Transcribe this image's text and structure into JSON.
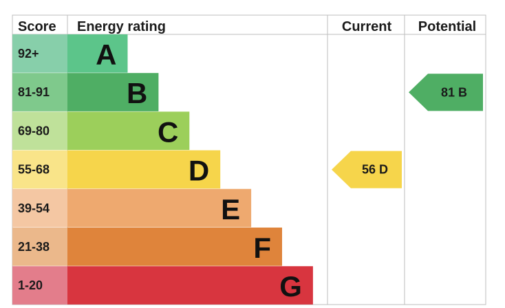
{
  "headers": {
    "score": "Score",
    "rating": "Energy rating",
    "current": "Current",
    "potential": "Potential"
  },
  "chart_data": {
    "type": "bar",
    "title": "",
    "xlabel": "",
    "ylabel": "",
    "categories": [
      "A",
      "B",
      "C",
      "D",
      "E",
      "F",
      "G"
    ],
    "score_ranges": [
      "92+",
      "81-91",
      "69-80",
      "55-68",
      "39-54",
      "21-38",
      "1-20"
    ],
    "bar_lengths": [
      1,
      2,
      3,
      4,
      5,
      6,
      7
    ],
    "band_colors": [
      "#5cc58a",
      "#4fae64",
      "#9ccf5b",
      "#f6d54b",
      "#eea96f",
      "#df843b",
      "#d8353f"
    ],
    "score_colors": [
      "#87cfaa",
      "#7fc98c",
      "#bfe19a",
      "#f9e489",
      "#f4c7a3",
      "#ebb88b",
      "#e37d8b"
    ],
    "current": {
      "value": 56,
      "band": "D",
      "label": "56  D",
      "color": "#f6d54b"
    },
    "potential": {
      "value": 81,
      "band": "B",
      "label": "81  B",
      "color": "#4fae64"
    }
  }
}
